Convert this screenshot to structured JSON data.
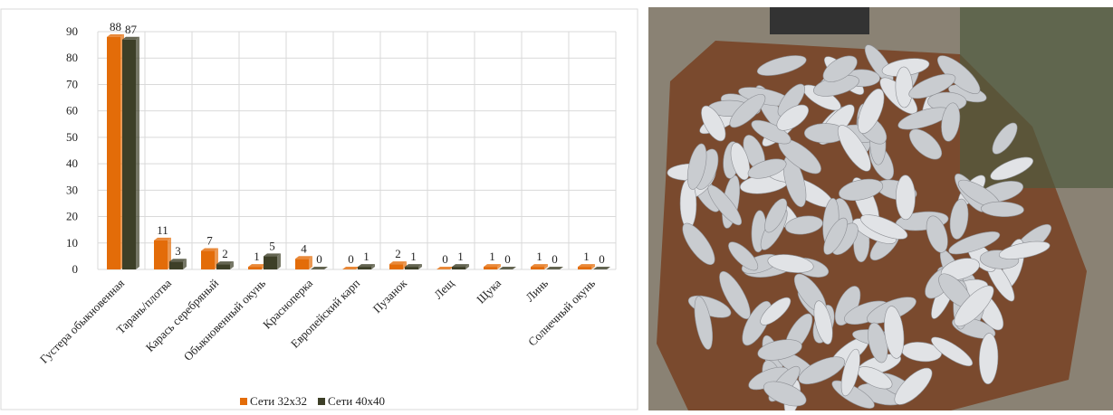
{
  "chart_data": {
    "type": "bar",
    "categories": [
      "Густера обыкновенная",
      "Тарань/плотва",
      "Карась серебряный",
      "Обыкновенный окунь",
      "Красноперка",
      "Европейский карп",
      "Пузанок",
      "Лещ",
      "Щука",
      "Линь",
      "Солнечный окунь"
    ],
    "series": [
      {
        "name": "Сети 32х32",
        "color": "#e36c09",
        "values": [
          88,
          11,
          7,
          1,
          4,
          0,
          2,
          0,
          1,
          1,
          1
        ]
      },
      {
        "name": "Сети 40х40",
        "color": "#3d3f27",
        "values": [
          87,
          3,
          2,
          5,
          0,
          1,
          1,
          1,
          0,
          0,
          0
        ]
      }
    ],
    "ylim": [
      0,
      90
    ],
    "yticks": [
      0,
      10,
      20,
      30,
      40,
      50,
      60,
      70,
      80,
      90
    ],
    "grid": true,
    "legend": "bottom"
  }
}
